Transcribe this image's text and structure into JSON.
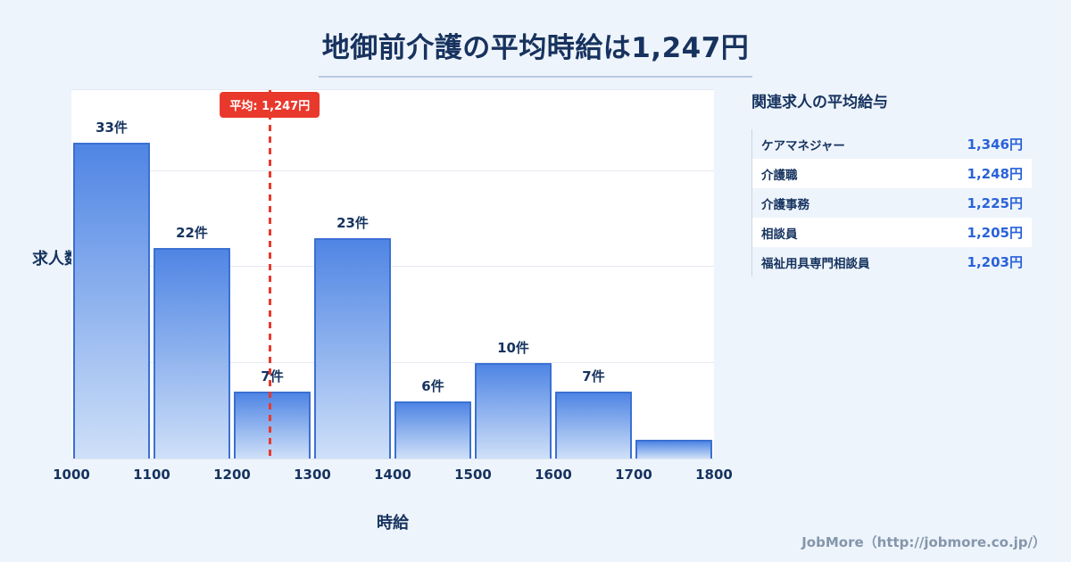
{
  "page": {
    "title": "地御前介護の平均時給は1,247円",
    "footer": "JobMore（http://jobmore.co.jp/）"
  },
  "chart_data": {
    "type": "bar",
    "title": "地御前介護の平均時給は1,247円",
    "xlabel": "時給",
    "ylabel": "求人数",
    "bin_edges": [
      1000,
      1100,
      1200,
      1300,
      1400,
      1500,
      1600,
      1700,
      1800
    ],
    "x_ticks": [
      "1000",
      "1100",
      "1200",
      "1300",
      "1400",
      "1500",
      "1600",
      "1700",
      "1800"
    ],
    "values": [
      33,
      22,
      7,
      23,
      6,
      10,
      7,
      2
    ],
    "bar_labels": [
      "33件",
      "22件",
      "7件",
      "23件",
      "6件",
      "10件",
      "7件",
      ""
    ],
    "ylim": [
      0,
      38.5
    ],
    "gridlines": [
      10,
      20,
      30
    ],
    "grid": "horizontal",
    "legend": "none",
    "average": {
      "value": 1247,
      "label": "平均: 1,247円",
      "line_color": "#e9392c"
    }
  },
  "side_panel": {
    "title": "関連求人の平均給与",
    "rows": [
      {
        "label": "ケアマネジャー",
        "value": "1,346円"
      },
      {
        "label": "介護職",
        "value": "1,248円"
      },
      {
        "label": "介護事務",
        "value": "1,225円"
      },
      {
        "label": "相談員",
        "value": "1,205円"
      },
      {
        "label": "福祉用具専門相談員",
        "value": "1,203円"
      }
    ]
  },
  "colors": {
    "background": "#eef4fb",
    "bar_fill_top": "#4f85e4",
    "bar_fill_bottom": "#cfe0f8",
    "bar_border": "#3b70d3",
    "average_red": "#e9392c",
    "heading_navy": "#16335f",
    "value_blue": "#2a62d8",
    "footer_gray": "#8496ab"
  }
}
